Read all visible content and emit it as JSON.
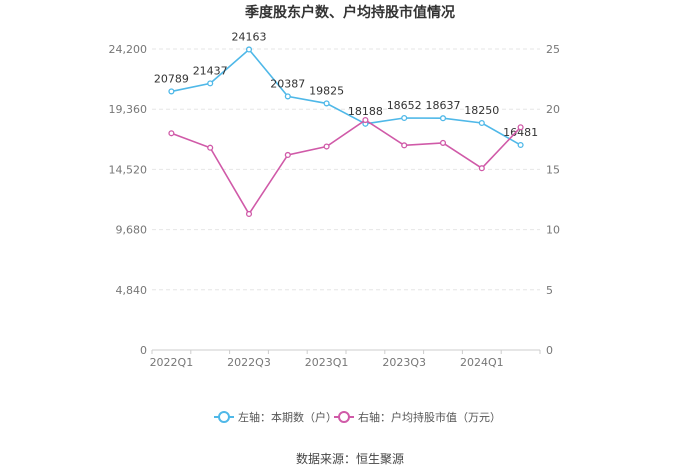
{
  "chart_data": {
    "type": "line",
    "title": "季度股东户数、户均持股市值情况",
    "categories": [
      "2022Q1",
      "2022Q2",
      "2022Q3",
      "2022Q4",
      "2023Q1",
      "2023Q2",
      "2023Q3",
      "2023Q4",
      "2024Q1",
      "2024Q2"
    ],
    "x_tick_labels": [
      "2022Q1",
      "2022Q3",
      "2023Q1",
      "2023Q3",
      "2024Q1"
    ],
    "left_axis": {
      "ticks": [
        "0",
        "4,840",
        "9,680",
        "14,520",
        "19,360",
        "24,200"
      ],
      "ylim": [
        0,
        24200
      ]
    },
    "right_axis": {
      "ticks": [
        "0",
        "5",
        "10",
        "15",
        "20",
        "25"
      ],
      "ylim": [
        0,
        25
      ]
    },
    "series": [
      {
        "name": "左轴：本期数（户）",
        "axis": "left",
        "color": "#4fb8e8",
        "values": [
          20789,
          21437,
          24163,
          20387,
          19825,
          18188,
          18652,
          18637,
          18250,
          16481
        ],
        "labels": [
          "20789",
          "21437",
          "24163",
          "20387",
          "19825",
          "18188",
          "18652",
          "18637",
          "18250",
          "16481"
        ]
      },
      {
        "name": "右轴：户均持股市值（万元）",
        "axis": "right",
        "color": "#d05aa8",
        "values": [
          18.0,
          16.8,
          11.3,
          16.2,
          16.9,
          19.1,
          17.0,
          17.2,
          15.1,
          18.5
        ]
      }
    ],
    "grid": true,
    "legend_position": "bottom"
  },
  "footer": {
    "source": "数据来源：恒生聚源"
  }
}
